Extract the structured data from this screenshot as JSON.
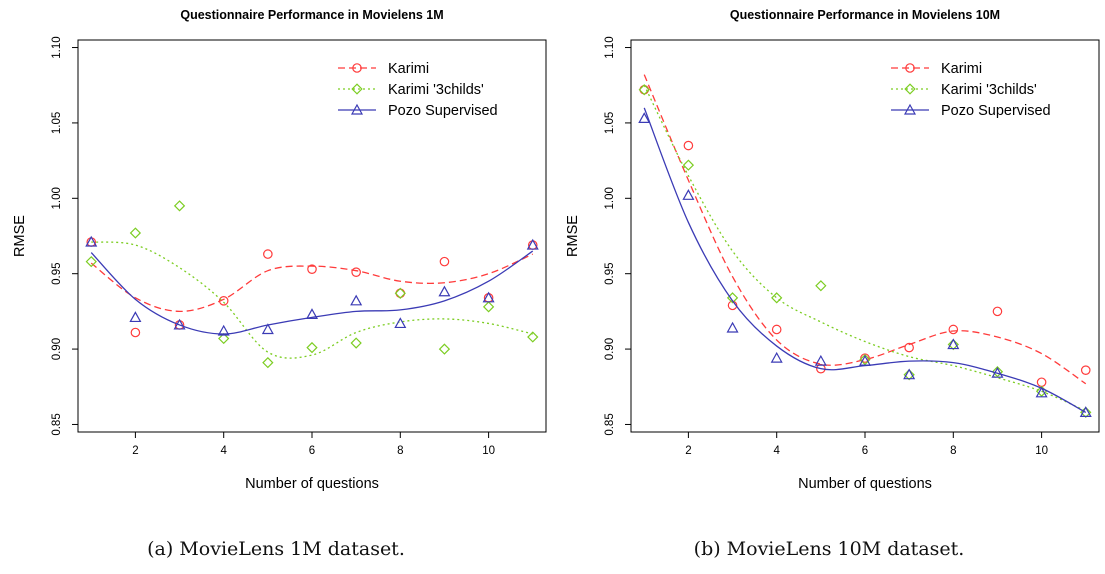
{
  "chart_data": [
    {
      "type": "scatter",
      "title": "Questionnaire Performance in Movielens 1M",
      "caption": "(a) MovieLens 1M dataset.",
      "xlabel": "Number of questions",
      "ylabel": "RMSE",
      "xlim": [
        0.7,
        11.3
      ],
      "ylim": [
        0.845,
        1.105
      ],
      "xticks": [
        2,
        4,
        6,
        8,
        10
      ],
      "yticks": [
        0.85,
        0.9,
        0.95,
        1.0,
        1.05,
        1.1
      ],
      "ytick_labels": [
        "0.85",
        "0.90",
        "0.95",
        "1.00",
        "1.05",
        "1.10"
      ],
      "grid": false,
      "legend_position": "top-right",
      "series": [
        {
          "name": "Karimi",
          "color": "#ff3b3b",
          "marker": "circle",
          "line_style": "dashed",
          "x": [
            1,
            2,
            3,
            4,
            5,
            6,
            7,
            8,
            9,
            10,
            11
          ],
          "values": [
            0.971,
            0.911,
            0.916,
            0.932,
            0.963,
            0.953,
            0.951,
            0.937,
            0.958,
            0.934,
            0.969
          ],
          "fit": [
            0.957,
            0.934,
            0.925,
            0.933,
            0.952,
            0.955,
            0.952,
            0.945,
            0.944,
            0.95,
            0.963
          ]
        },
        {
          "name": "Karimi '3childs'",
          "color": "#7ccd22",
          "marker": "diamond",
          "line_style": "dotted",
          "x": [
            1,
            2,
            3,
            4,
            5,
            6,
            7,
            8,
            9,
            10,
            11
          ],
          "values": [
            0.958,
            0.977,
            0.995,
            0.907,
            0.891,
            0.901,
            0.904,
            0.937,
            0.9,
            0.928,
            0.908
          ],
          "fit": [
            0.971,
            0.969,
            0.954,
            0.931,
            0.898,
            0.896,
            0.911,
            0.918,
            0.92,
            0.917,
            0.91
          ]
        },
        {
          "name": "Pozo Supervised",
          "color": "#3b3bb5",
          "marker": "triangle",
          "line_style": "solid",
          "x": [
            1,
            2,
            3,
            4,
            5,
            6,
            7,
            8,
            9,
            10,
            11
          ],
          "values": [
            0.971,
            0.921,
            0.916,
            0.912,
            0.913,
            0.923,
            0.932,
            0.917,
            0.938,
            0.934,
            0.969
          ],
          "fit": [
            0.964,
            0.933,
            0.916,
            0.91,
            0.916,
            0.921,
            0.925,
            0.926,
            0.932,
            0.945,
            0.965
          ]
        }
      ]
    },
    {
      "type": "scatter",
      "title": "Questionnaire Performance in Movielens 10M",
      "caption": "(b) MovieLens 10M dataset.",
      "xlabel": "Number of questions",
      "ylabel": "RMSE",
      "xlim": [
        0.7,
        11.3
      ],
      "ylim": [
        0.845,
        1.105
      ],
      "xticks": [
        2,
        4,
        6,
        8,
        10
      ],
      "yticks": [
        0.85,
        0.9,
        0.95,
        1.0,
        1.05,
        1.1
      ],
      "ytick_labels": [
        "0.85",
        "0.90",
        "0.95",
        "1.00",
        "1.05",
        "1.10"
      ],
      "grid": false,
      "legend_position": "top-right",
      "series": [
        {
          "name": "Karimi",
          "color": "#ff3b3b",
          "marker": "circle",
          "line_style": "dashed",
          "x": [
            1,
            2,
            3,
            4,
            5,
            6,
            7,
            8,
            9,
            10,
            11
          ],
          "values": [
            1.072,
            1.035,
            0.929,
            0.913,
            0.887,
            0.894,
            0.901,
            0.913,
            0.925,
            0.878,
            0.886
          ],
          "fit": [
            1.082,
            1.012,
            0.948,
            0.906,
            0.89,
            0.893,
            0.903,
            0.912,
            0.908,
            0.897,
            0.877
          ]
        },
        {
          "name": "Karimi '3childs'",
          "color": "#7ccd22",
          "marker": "diamond",
          "line_style": "dotted",
          "x": [
            1,
            2,
            3,
            4,
            5,
            6,
            7,
            8,
            9,
            10,
            11
          ],
          "values": [
            1.072,
            1.022,
            0.934,
            0.934,
            0.942,
            0.893,
            0.883,
            0.903,
            0.885,
            0.872,
            0.858
          ],
          "fit": [
            1.075,
            1.015,
            0.965,
            0.934,
            0.918,
            0.905,
            0.895,
            0.889,
            0.881,
            0.872,
            0.859
          ]
        },
        {
          "name": "Pozo Supervised",
          "color": "#3b3bb5",
          "marker": "triangle",
          "line_style": "solid",
          "x": [
            1,
            2,
            3,
            4,
            5,
            6,
            7,
            8,
            9,
            10,
            11
          ],
          "values": [
            1.053,
            1.002,
            0.914,
            0.894,
            0.892,
            0.892,
            0.883,
            0.903,
            0.884,
            0.871,
            0.858
          ],
          "fit": [
            1.06,
            0.984,
            0.932,
            0.902,
            0.887,
            0.889,
            0.892,
            0.891,
            0.884,
            0.874,
            0.858
          ]
        }
      ]
    }
  ]
}
